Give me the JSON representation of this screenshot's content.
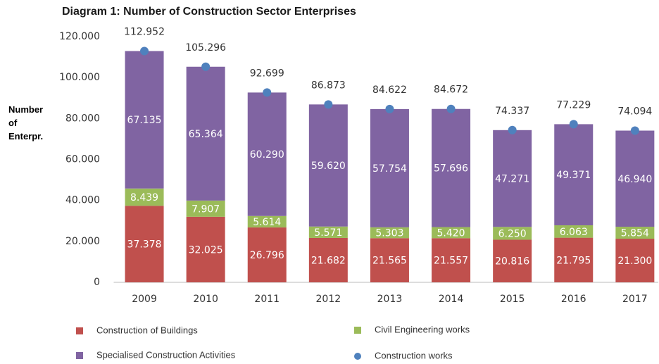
{
  "chart_data": {
    "type": "bar",
    "stacked": true,
    "title": "Diagram 1: Number of Construction Sector Enterprises",
    "y_label": "Number of Enterpr.",
    "categories": [
      "2009",
      "2010",
      "2011",
      "2012",
      "2013",
      "2014",
      "2015",
      "2016",
      "2017"
    ],
    "series": [
      {
        "name": "Construction of Buildings",
        "color": "#c0504d",
        "type": "bar",
        "values": [
          37378,
          32025,
          26796,
          21682,
          21565,
          21557,
          20816,
          21795,
          21300
        ],
        "value_labels": [
          "37.378",
          "32.025",
          "26.796",
          "21.682",
          "21.565",
          "21.557",
          "20.816",
          "21.795",
          "21.300"
        ]
      },
      {
        "name": "Civil Engineering works",
        "color": "#9bbb59",
        "type": "bar",
        "values": [
          8439,
          7907,
          5614,
          5571,
          5303,
          5420,
          6250,
          6063,
          5854
        ],
        "value_labels": [
          "8.439",
          "7.907",
          "5.614",
          "5.571",
          "5.303",
          "5.420",
          "6.250",
          "6.063",
          "5.854"
        ]
      },
      {
        "name": "Specialised Construction Activities",
        "color": "#8064a2",
        "type": "bar",
        "values": [
          67135,
          65364,
          60290,
          59620,
          57754,
          57696,
          47271,
          49371,
          46940
        ],
        "value_labels": [
          "67.135",
          "65.364",
          "60.290",
          "59.620",
          "57.754",
          "57.696",
          "47.271",
          "49.371",
          "46.940"
        ]
      },
      {
        "name": "Construction works",
        "color": "#4f81bd",
        "type": "scatter",
        "values": [
          112952,
          105296,
          92699,
          86873,
          84622,
          84672,
          74337,
          77229,
          74094
        ],
        "value_labels": [
          "112.952",
          "105.296",
          "92.699",
          "86.873",
          "84.622",
          "84.672",
          "74.337",
          "77.229",
          "74.094"
        ]
      }
    ],
    "ylim": [
      0,
      120000
    ],
    "yticks": [
      0,
      {
        "value": 20000,
        "label": "20.000"
      },
      {
        "value": 40000,
        "label": "40.000"
      },
      {
        "value": 60000,
        "label": "60.000"
      },
      {
        "value": 80000,
        "label": "80.000"
      },
      {
        "value": 100000,
        "label": "100.000"
      },
      {
        "value": 120000,
        "label": "120.000"
      }
    ],
    "grid": false
  }
}
